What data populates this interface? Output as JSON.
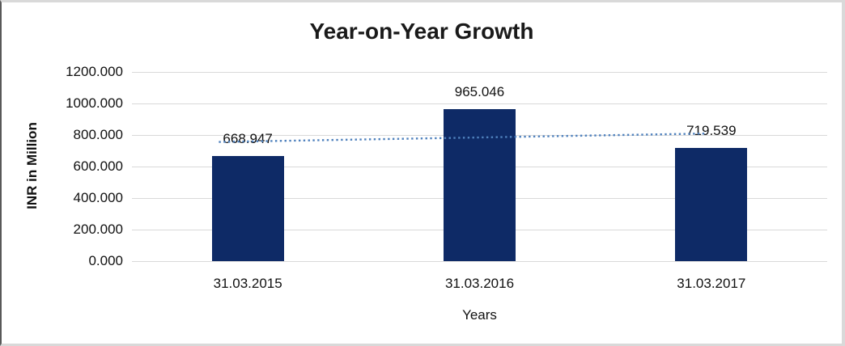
{
  "chart_data": {
    "type": "bar",
    "title": "Year-on-Year Growth",
    "categories": [
      "31.03.2015",
      "31.03.2016",
      "31.03.2017"
    ],
    "values": [
      668.947,
      965.046,
      719.539
    ],
    "value_labels": [
      "668.947",
      "965.046",
      "719.539"
    ],
    "xlabel": "Years",
    "ylabel": "INR in Million",
    "ylim": [
      0,
      1200
    ],
    "ytick_step": 200,
    "yticks": [
      "0.000",
      "200.000",
      "400.000",
      "600.000",
      "800.000",
      "1000.000",
      "1200.000"
    ],
    "grid": true,
    "legend_position": "none",
    "bar_color": "#0e2a66",
    "gridline_color": "#d9d9d9",
    "text_color": "#1a1a1a",
    "trendline": {
      "type": "linear",
      "style": "dotted",
      "color": "#4f81bd"
    }
  }
}
